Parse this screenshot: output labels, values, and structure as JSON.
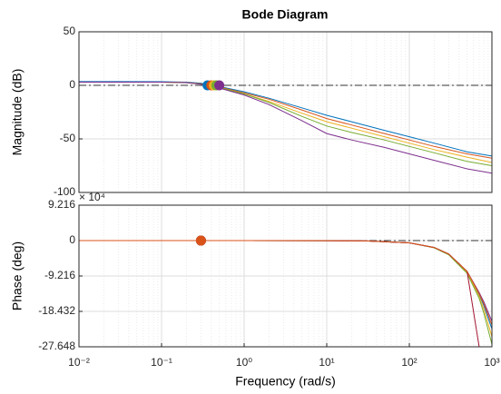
{
  "chart_data": [
    {
      "type": "line",
      "title": "Bode Diagram",
      "ylabel": "Magnitude (dB)",
      "xscale": "log",
      "grid": true,
      "xlim": [
        0.01,
        1000
      ],
      "ylim": [
        -100,
        50
      ],
      "yticks": [
        -100,
        -50,
        0,
        50
      ],
      "reference_line": 0,
      "x": [
        0.01,
        0.03,
        0.1,
        0.2,
        0.3,
        0.5,
        1,
        2,
        5,
        10,
        20,
        50,
        100,
        200,
        500,
        1000
      ],
      "series": [
        {
          "color": "#0072bd",
          "marker_x": 0.36,
          "marker_y": 0,
          "values": [
            3.5,
            3.5,
            3.4,
            3,
            2,
            -1,
            -6,
            -12,
            -21,
            -28,
            -34,
            -42,
            -48,
            -54,
            -62,
            -66
          ]
        },
        {
          "color": "#d95319",
          "marker_x": 0.4,
          "marker_y": 0,
          "values": [
            3,
            3,
            3,
            2.6,
            1.5,
            -1.5,
            -7,
            -13,
            -23,
            -31,
            -37,
            -45,
            -51,
            -57,
            -64,
            -68
          ]
        },
        {
          "color": "#edb120",
          "marker_x": 0.43,
          "marker_y": 0,
          "values": [
            3,
            3,
            3,
            2.5,
            1.3,
            -2,
            -8,
            -15,
            -26,
            -34,
            -40,
            -48,
            -54,
            -60,
            -67,
            -72
          ]
        },
        {
          "color": "#77ac30",
          "marker_x": 0.46,
          "marker_y": 0,
          "values": [
            3,
            3,
            3,
            2.5,
            1.2,
            -2,
            -8,
            -16,
            -29,
            -38,
            -44,
            -51,
            -57,
            -63,
            -71,
            -75
          ]
        },
        {
          "color": "#7e2f8e",
          "marker_x": 0.5,
          "marker_y": 0,
          "values": [
            3,
            3,
            3,
            2.5,
            1,
            -2.5,
            -9,
            -18,
            -33,
            -45,
            -51,
            -58,
            -64,
            -70,
            -78,
            -82
          ]
        }
      ]
    },
    {
      "type": "line",
      "ylabel": "Phase (deg)",
      "xlabel": "Frequency  (rad/s)",
      "xscale": "log",
      "grid": true,
      "y_multiplier": "× 10⁴",
      "xlim": [
        0.01,
        1000
      ],
      "ylim": [
        -27.648,
        9.216
      ],
      "yticks": [
        -27.648,
        -18.432,
        -9.216,
        0,
        9.216
      ],
      "reference_line": 0,
      "xticks": [
        {
          "value": 0.01,
          "label": "10⁻²"
        },
        {
          "value": 0.1,
          "label": "10⁻¹"
        },
        {
          "value": 1,
          "label": "10⁰"
        },
        {
          "value": 10,
          "label": "10¹"
        },
        {
          "value": 100,
          "label": "10²"
        },
        {
          "value": 1000,
          "label": "10³"
        }
      ],
      "x": [
        0.01,
        1,
        10,
        30,
        100,
        200,
        300,
        500,
        700,
        800,
        1000
      ],
      "series": [
        {
          "color": "#0072bd",
          "marker_x": 0.3,
          "marker_y": 0,
          "values": [
            0,
            0,
            -0.02,
            -0.1,
            -0.6,
            -1.8,
            -3.5,
            -8,
            -14,
            -17,
            -23
          ]
        },
        {
          "color": "#edb120",
          "marker_x": 0.3,
          "marker_y": 0,
          "values": [
            0,
            0,
            -0.02,
            -0.1,
            -0.6,
            -1.8,
            -3.6,
            -8.2,
            -14.5,
            -18,
            -25
          ]
        },
        {
          "color": "#77ac30",
          "marker_x": 0.3,
          "marker_y": 0,
          "values": [
            0,
            0,
            -0.02,
            -0.1,
            -0.6,
            -1.9,
            -3.7,
            -8.5,
            -15,
            -19,
            -27
          ]
        },
        {
          "color": "#7e2f8e",
          "marker_x": 0.3,
          "marker_y": 0,
          "values": [
            0,
            0,
            -0.02,
            -0.1,
            -0.6,
            -1.8,
            -3.5,
            -8,
            -13.5,
            -16,
            -21
          ]
        },
        {
          "color": "#a2142f",
          "marker_x": 0.3,
          "marker_y": 0,
          "values": [
            0,
            0,
            -0.02,
            -0.1,
            -0.6,
            -1.8,
            -3.5,
            -8,
            -27.6,
            null,
            null
          ]
        },
        {
          "color": "#d95319",
          "marker_x": 0.3,
          "marker_y": 0,
          "values": [
            0,
            0,
            -0.02,
            -0.1,
            -0.6,
            -1.8,
            -3.5,
            -8,
            -13.8,
            -16.5,
            -22
          ]
        }
      ]
    }
  ]
}
